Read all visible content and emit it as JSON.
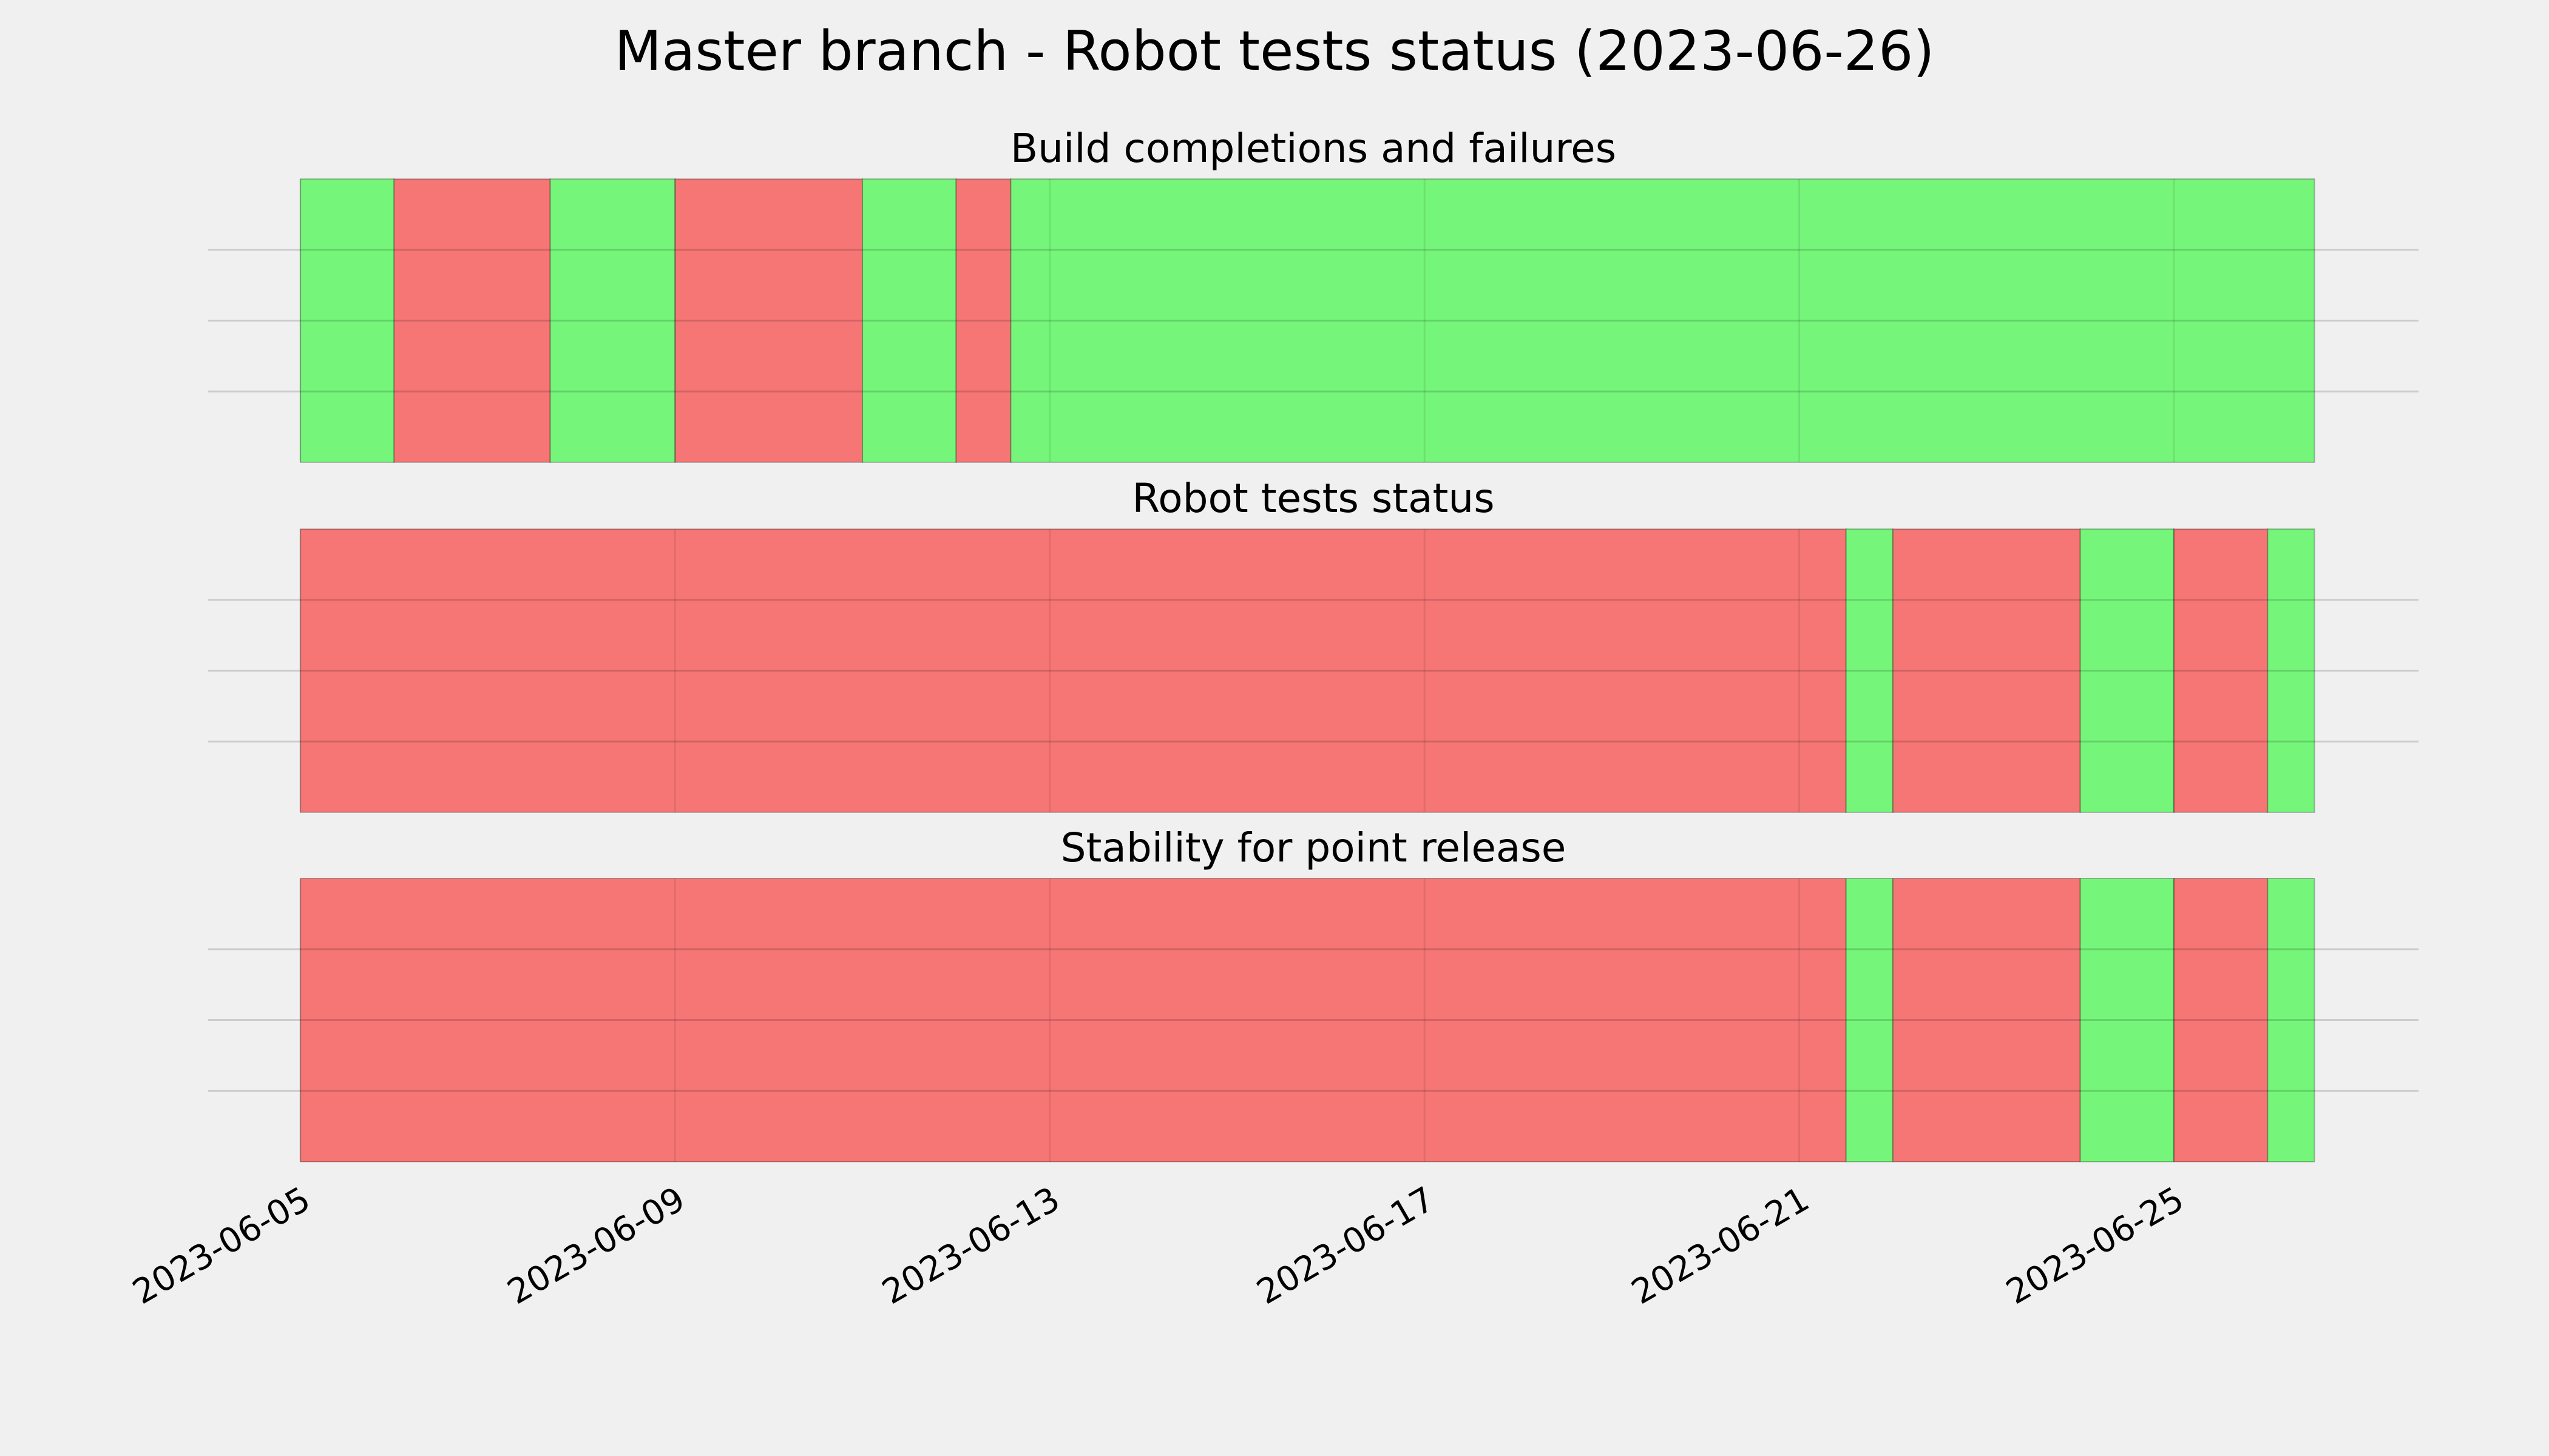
{
  "title": "Master branch - Robot tests status (2023-06-26)",
  "colors": {
    "background": "#f0f0f0",
    "pass": "#75f67a",
    "fail": "#f67575",
    "grid": "#cbcbcb"
  },
  "chart_data": {
    "type": "timeline",
    "xlim": [
      "2023-06-05",
      "2023-06-26"
    ],
    "xticks": [
      "2023-06-05",
      "2023-06-09",
      "2023-06-13",
      "2023-06-17",
      "2023-06-21",
      "2023-06-25"
    ],
    "grid": true,
    "panels": [
      {
        "title": "Build completions and failures",
        "segments": [
          {
            "start": "2023-06-05 00:00",
            "end": "2023-06-06 00:00",
            "status": "pass"
          },
          {
            "start": "2023-06-06 00:00",
            "end": "2023-06-07 16:00",
            "status": "fail"
          },
          {
            "start": "2023-06-07 16:00",
            "end": "2023-06-09 00:00",
            "status": "pass"
          },
          {
            "start": "2023-06-09 00:00",
            "end": "2023-06-11 00:00",
            "status": "fail"
          },
          {
            "start": "2023-06-11 00:00",
            "end": "2023-06-12 00:00",
            "status": "pass"
          },
          {
            "start": "2023-06-12 00:00",
            "end": "2023-06-12 14:00",
            "status": "fail"
          },
          {
            "start": "2023-06-12 14:00",
            "end": "2023-06-26 12:00",
            "status": "pass"
          }
        ]
      },
      {
        "title": "Robot tests status",
        "segments": [
          {
            "start": "2023-06-05 00:00",
            "end": "2023-06-21 12:00",
            "status": "fail"
          },
          {
            "start": "2023-06-21 12:00",
            "end": "2023-06-22 00:00",
            "status": "pass"
          },
          {
            "start": "2023-06-22 00:00",
            "end": "2023-06-24 00:00",
            "status": "fail"
          },
          {
            "start": "2023-06-24 00:00",
            "end": "2023-06-25 00:00",
            "status": "pass"
          },
          {
            "start": "2023-06-25 00:00",
            "end": "2023-06-26 00:00",
            "status": "fail"
          },
          {
            "start": "2023-06-26 00:00",
            "end": "2023-06-26 12:00",
            "status": "pass"
          }
        ]
      },
      {
        "title": "Stability for point release",
        "segments": [
          {
            "start": "2023-06-05 00:00",
            "end": "2023-06-21 12:00",
            "status": "fail"
          },
          {
            "start": "2023-06-21 12:00",
            "end": "2023-06-22 00:00",
            "status": "pass"
          },
          {
            "start": "2023-06-22 00:00",
            "end": "2023-06-24 00:00",
            "status": "fail"
          },
          {
            "start": "2023-06-24 00:00",
            "end": "2023-06-25 00:00",
            "status": "pass"
          },
          {
            "start": "2023-06-25 00:00",
            "end": "2023-06-26 00:00",
            "status": "fail"
          },
          {
            "start": "2023-06-26 00:00",
            "end": "2023-06-26 12:00",
            "status": "pass"
          }
        ]
      }
    ]
  }
}
